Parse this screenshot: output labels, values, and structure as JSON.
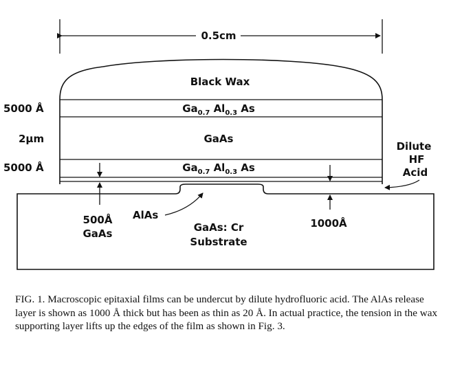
{
  "labels": {
    "width_label": "0.5cm",
    "black_wax": "Black Wax",
    "gaas_layer": "GaAs",
    "alas": "AlAs",
    "substrate_line1": "GaAs: Cr",
    "substrate_line2": "Substrate",
    "thickness_top": "5000 Å",
    "thickness_middle": "2μm",
    "thickness_bottom": "5000 Å",
    "base_thickness": "500Å",
    "base_material": "GaAs",
    "gap_thickness": "1000Å",
    "acid_line1": "Dilute",
    "acid_line2": "HF",
    "acid_line3": "Acid",
    "algaas": {
      "ga": "Ga",
      "ga_sub": "0.7",
      "al": " Al",
      "al_sub": "0.3",
      "as": " As"
    }
  },
  "caption": "FIG. 1. Macroscopic epitaxial films can be undercut by dilute hydrofluoric acid. The AlAs release layer is shown as 1000 Å thick but has been as thin as 20 Å. In actual practice, the tension in the wax supporting layer lifts up the edges of the film as shown in Fig. 3."
}
